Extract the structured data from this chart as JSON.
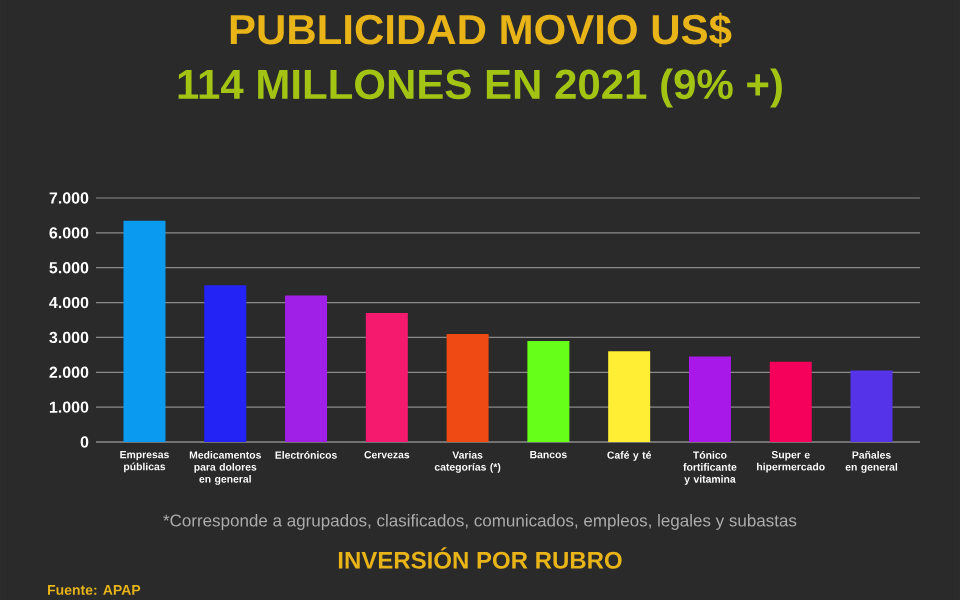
{
  "chart_data": {
    "type": "bar",
    "title": "PUBLICIDAD MOVIO US$",
    "subtitle": "114 MILLONES EN 2021  (9% +)",
    "categories": [
      "Empresas públicas",
      "Medicamentos para dolores en general",
      "Electrónicos",
      "Cervezas",
      "Varias categorías (*)",
      "Bancos",
      "Café y té",
      "Tónico fortificante y vitamina",
      "Super e hipermercado",
      "Pañales en general"
    ],
    "values": [
      6350,
      4500,
      4200,
      3700,
      3100,
      2900,
      2600,
      2450,
      2300,
      2050
    ],
    "colors": [
      "#0a9af0",
      "#2323f5",
      "#a020e8",
      "#f51a6e",
      "#f04a14",
      "#66ff1a",
      "#ffee33",
      "#a818e8",
      "#f5005a",
      "#5533e8"
    ],
    "ylim": [
      0,
      7000
    ],
    "yticks": [
      0,
      {
        "value": 1000,
        "label": "1.000"
      },
      {
        "value": 2000,
        "label": "2.000"
      },
      {
        "value": 3000,
        "label": "3.000"
      },
      {
        "value": 4000,
        "label": "4.000"
      },
      {
        "value": 5000,
        "label": "5.000"
      },
      {
        "value": 6000,
        "label": "6.000"
      },
      {
        "value": 7000,
        "label": "7.000"
      }
    ],
    "grid": "y",
    "annotations": [
      "*Corresponde a agrupados, clasificados, comunicados, empleos, legales y subastas",
      "INVERSIÓN POR RUBRO",
      "Fuente: APAP"
    ]
  }
}
